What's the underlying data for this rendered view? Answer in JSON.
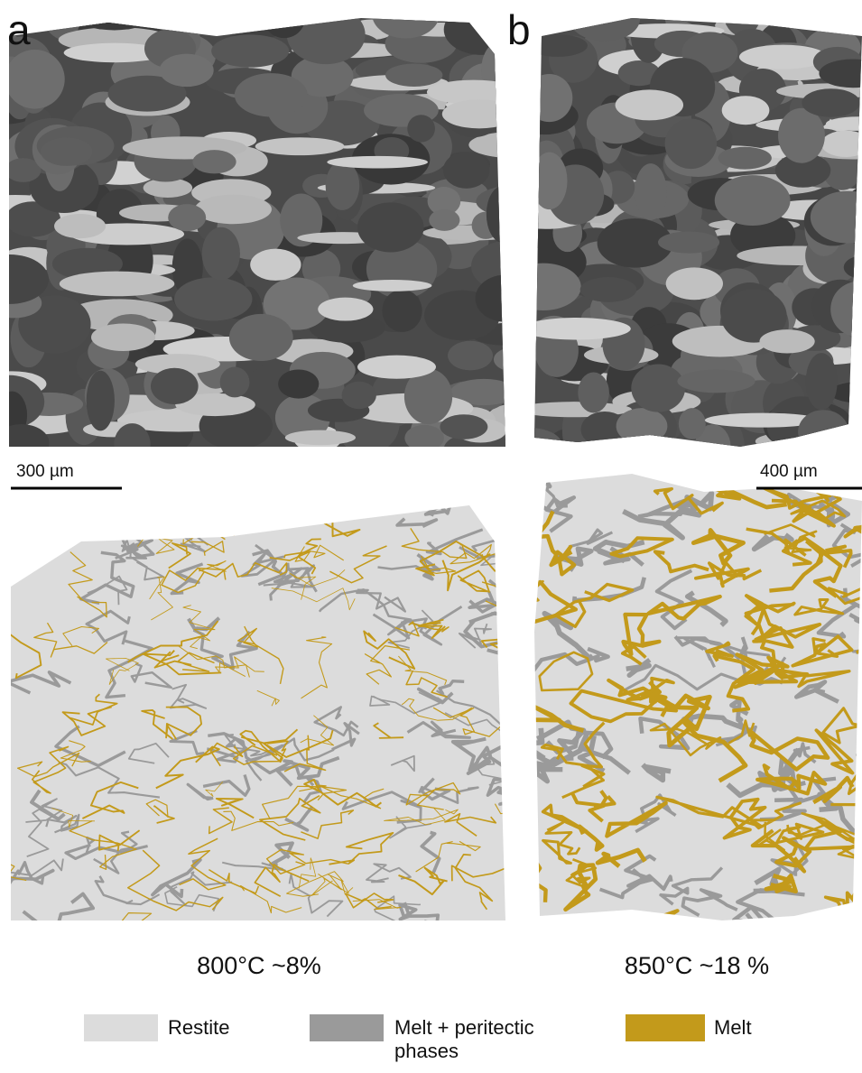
{
  "panels": [
    {
      "label": "a",
      "scale_bar": "300 µm",
      "caption": "800°C ~8%"
    },
    {
      "label": "b",
      "scale_bar": "400 µm",
      "caption": "850°C ~18 %"
    }
  ],
  "legend": [
    {
      "label": "Restite",
      "color": "#dcdcdc"
    },
    {
      "label": "Melt + peritectic phases",
      "color": "#9a9a9a"
    },
    {
      "label": "Melt",
      "color": "#c39a1b"
    }
  ]
}
